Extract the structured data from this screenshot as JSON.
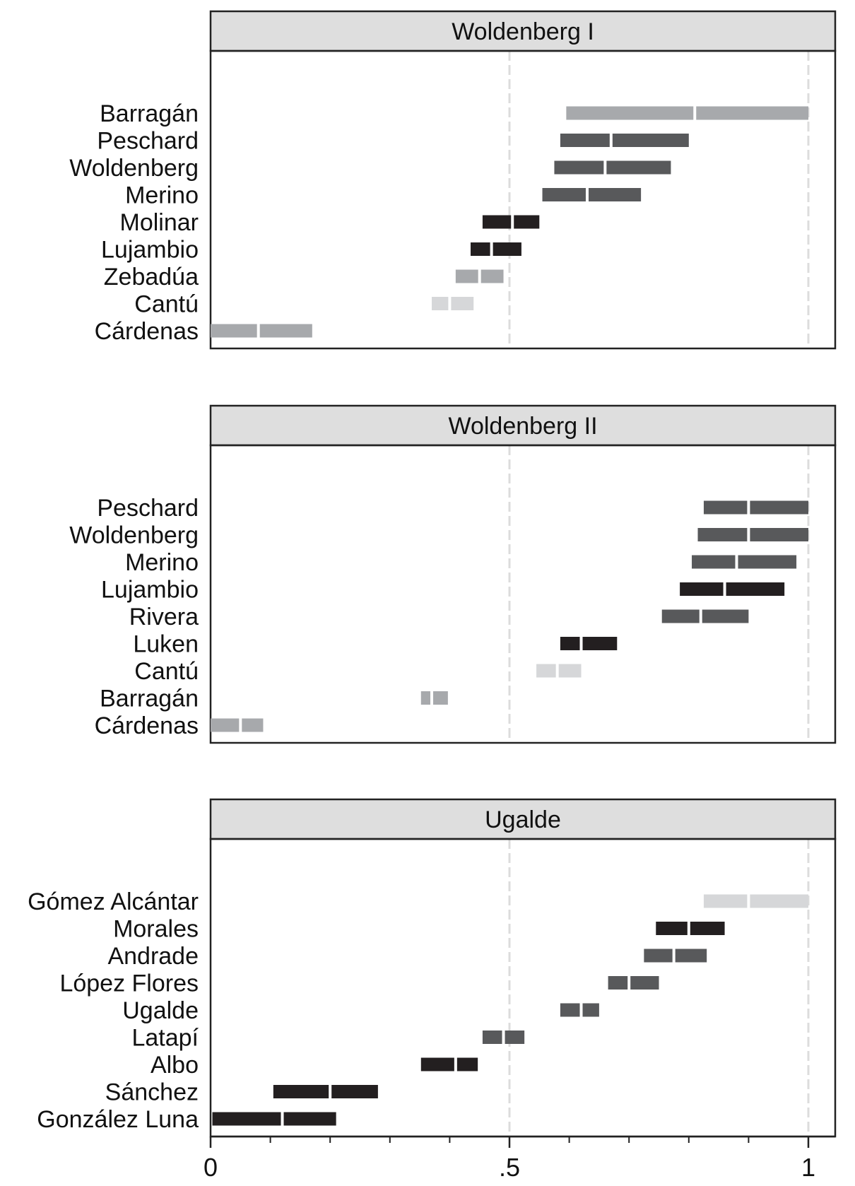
{
  "chart_data": {
    "type": "interval",
    "xlim": [
      0,
      1
    ],
    "reference_lines": [
      0.5,
      1
    ],
    "x_ticks": [
      {
        "value": 0,
        "label": "0"
      },
      {
        "value": 0.5,
        "label": ".5"
      },
      {
        "value": 1,
        "label": "1"
      }
    ],
    "minor_ticks": [
      0.1,
      0.2,
      0.3,
      0.4,
      0.6,
      0.7,
      0.8,
      0.9
    ],
    "colors": {
      "black": "#231f20",
      "darkgray": "#58595b",
      "gray": "#a7a9ac",
      "lightgray": "#d6d7d9",
      "header": "#dedede"
    },
    "panels": [
      {
        "title": "Woldenberg I",
        "rows": [
          {
            "label": "Barragán",
            "low": 0.595,
            "mid": 0.81,
            "high": 1.0,
            "color": "gray"
          },
          {
            "label": "Peschard",
            "low": 0.585,
            "mid": 0.67,
            "high": 0.8,
            "color": "darkgray"
          },
          {
            "label": "Woldenberg",
            "low": 0.575,
            "mid": 0.66,
            "high": 0.77,
            "color": "darkgray"
          },
          {
            "label": "Merino",
            "low": 0.555,
            "mid": 0.63,
            "high": 0.72,
            "color": "darkgray"
          },
          {
            "label": "Molinar",
            "low": 0.455,
            "mid": 0.505,
            "high": 0.55,
            "color": "black"
          },
          {
            "label": "Lujambio",
            "low": 0.435,
            "mid": 0.47,
            "high": 0.52,
            "color": "black"
          },
          {
            "label": "Zebadúa",
            "low": 0.41,
            "mid": 0.45,
            "high": 0.49,
            "color": "gray"
          },
          {
            "label": "Cantú",
            "low": 0.37,
            "mid": 0.4,
            "high": 0.44,
            "color": "lightgray"
          },
          {
            "label": "Cárdenas",
            "low": 0.0,
            "mid": 0.08,
            "high": 0.17,
            "color": "gray"
          }
        ]
      },
      {
        "title": "Woldenberg II",
        "rows": [
          {
            "label": "Peschard",
            "low": 0.825,
            "mid": 0.9,
            "high": 1.0,
            "color": "darkgray"
          },
          {
            "label": "Woldenberg",
            "low": 0.815,
            "mid": 0.9,
            "high": 1.0,
            "color": "darkgray"
          },
          {
            "label": "Merino",
            "low": 0.805,
            "mid": 0.88,
            "high": 0.98,
            "color": "darkgray"
          },
          {
            "label": "Lujambio",
            "low": 0.785,
            "mid": 0.86,
            "high": 0.96,
            "color": "black"
          },
          {
            "label": "Rivera",
            "low": 0.755,
            "mid": 0.82,
            "high": 0.9,
            "color": "darkgray"
          },
          {
            "label": "Luken",
            "low": 0.585,
            "mid": 0.62,
            "high": 0.68,
            "color": "black"
          },
          {
            "label": "Cantú",
            "low": 0.545,
            "mid": 0.58,
            "high": 0.62,
            "color": "lightgray"
          },
          {
            "label": "Barragán",
            "low": 0.352,
            "mid": 0.37,
            "high": 0.397,
            "color": "gray"
          },
          {
            "label": "Cárdenas",
            "low": 0.0,
            "mid": 0.05,
            "high": 0.088,
            "color": "gray"
          }
        ]
      },
      {
        "title": "Ugalde",
        "rows": [
          {
            "label": "Gómez Alcántar",
            "low": 0.825,
            "mid": 0.9,
            "high": 1.0,
            "color": "lightgray"
          },
          {
            "label": "Morales",
            "low": 0.745,
            "mid": 0.8,
            "high": 0.86,
            "color": "black"
          },
          {
            "label": "Andrade",
            "low": 0.725,
            "mid": 0.775,
            "high": 0.83,
            "color": "darkgray"
          },
          {
            "label": "López Flores",
            "low": 0.665,
            "mid": 0.7,
            "high": 0.75,
            "color": "darkgray"
          },
          {
            "label": "Ugalde",
            "low": 0.585,
            "mid": 0.62,
            "high": 0.65,
            "color": "darkgray"
          },
          {
            "label": "Latapí",
            "low": 0.455,
            "mid": 0.49,
            "high": 0.525,
            "color": "darkgray"
          },
          {
            "label": "Albo",
            "low": 0.352,
            "mid": 0.41,
            "high": 0.447,
            "color": "black"
          },
          {
            "label": "Sánchez",
            "low": 0.105,
            "mid": 0.2,
            "high": 0.28,
            "color": "black"
          },
          {
            "label": "González Luna",
            "low": 0.003,
            "mid": 0.12,
            "high": 0.21,
            "color": "black"
          }
        ]
      }
    ]
  }
}
